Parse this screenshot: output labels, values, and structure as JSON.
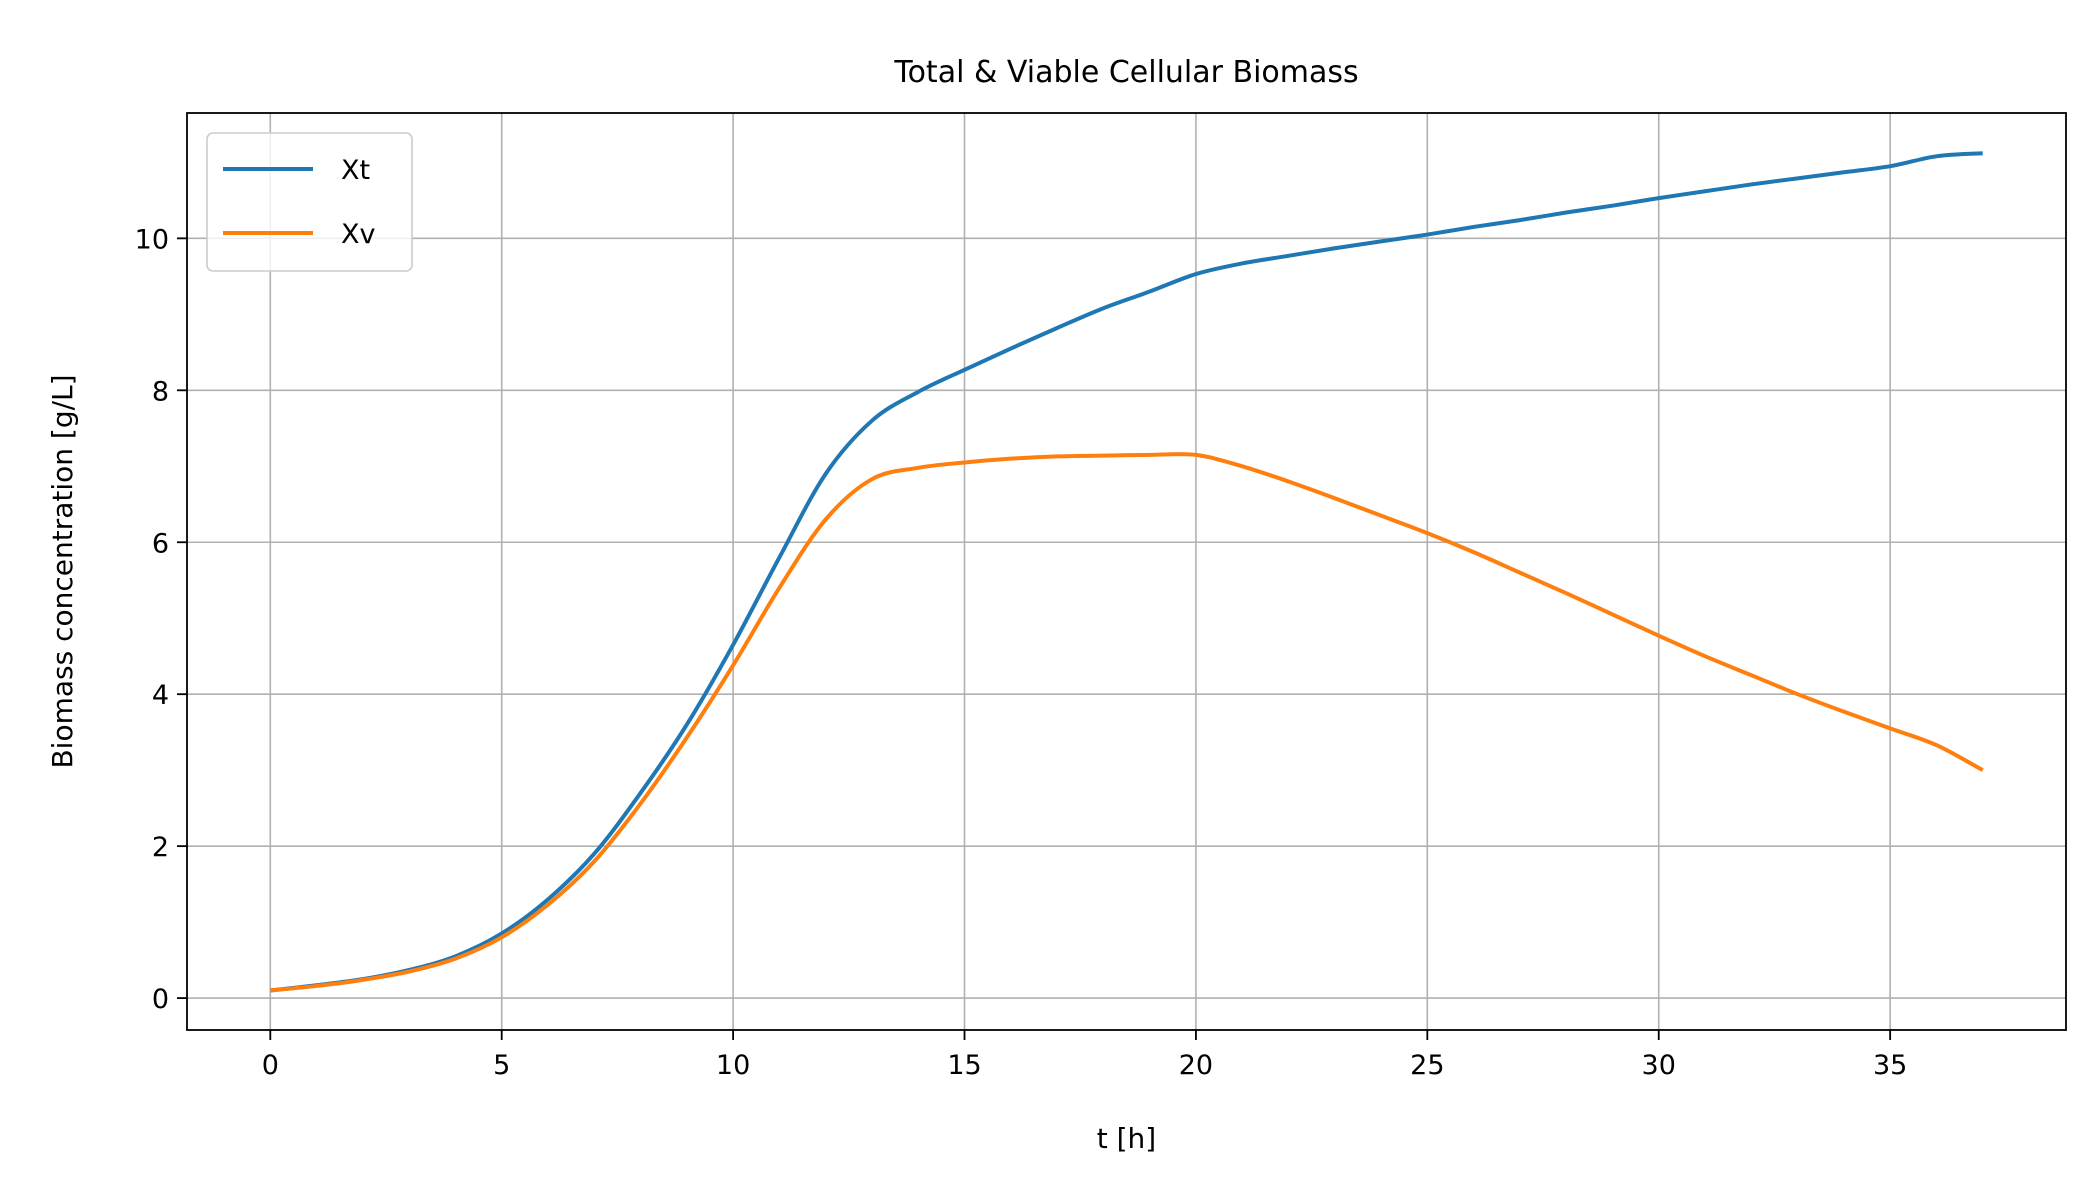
{
  "chart_data": {
    "type": "line",
    "title": "Total & Viable Cellular Biomass",
    "xlabel": "t [h]",
    "ylabel": "Biomass concentration [g/L]",
    "xlim": [
      -1.8,
      38.8
    ],
    "ylim": [
      -0.42,
      11.65
    ],
    "xticks": [
      0,
      5,
      10,
      15,
      20,
      25,
      30,
      35
    ],
    "yticks": [
      0,
      2,
      4,
      6,
      8,
      10
    ],
    "grid": true,
    "legend_position": "upper-left",
    "series": [
      {
        "name": "Xt",
        "color": "#1f77b4",
        "x": [
          0,
          1,
          2,
          3,
          4,
          5,
          6,
          7,
          8,
          9,
          10,
          11,
          12,
          13,
          14,
          15,
          16,
          17,
          18,
          19,
          20,
          21,
          22,
          23,
          24,
          25,
          26,
          27,
          28,
          29,
          30,
          31,
          32,
          33,
          34,
          35,
          36,
          37
        ],
        "y": [
          0.1,
          0.17,
          0.25,
          0.37,
          0.55,
          0.85,
          1.3,
          1.9,
          2.7,
          3.6,
          4.65,
          5.8,
          6.9,
          7.6,
          7.98,
          8.27,
          8.55,
          8.82,
          9.08,
          9.3,
          9.53,
          9.67,
          9.77,
          9.87,
          9.96,
          10.05,
          10.15,
          10.24,
          10.34,
          10.43,
          10.53,
          10.62,
          10.71,
          10.79,
          10.87,
          10.95,
          11.08,
          11.12
        ]
      },
      {
        "name": "Xv",
        "color": "#ff7f0e",
        "x": [
          0,
          1,
          2,
          3,
          4,
          5,
          6,
          7,
          8,
          9,
          10,
          11,
          12,
          13,
          14,
          15,
          16,
          17,
          18,
          19,
          20,
          21,
          22,
          23,
          24,
          25,
          26,
          27,
          28,
          29,
          30,
          31,
          32,
          33,
          34,
          35,
          36,
          37
        ],
        "y": [
          0.1,
          0.16,
          0.24,
          0.35,
          0.52,
          0.8,
          1.23,
          1.8,
          2.56,
          3.43,
          4.38,
          5.4,
          6.3,
          6.83,
          6.98,
          7.05,
          7.1,
          7.13,
          7.14,
          7.15,
          7.15,
          7.0,
          6.8,
          6.58,
          6.35,
          6.12,
          5.87,
          5.6,
          5.33,
          5.05,
          4.77,
          4.5,
          4.25,
          4.0,
          3.77,
          3.55,
          3.33,
          3.0
        ]
      }
    ]
  }
}
